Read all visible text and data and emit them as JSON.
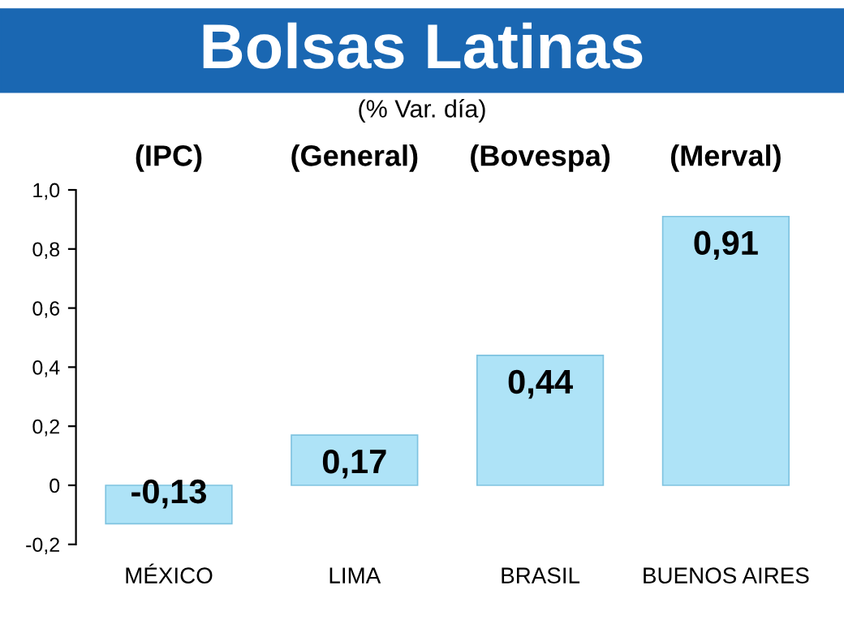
{
  "chart_data": {
    "type": "bar",
    "title": "Bolsas Latinas",
    "subtitle": "(% Var. día)",
    "categories": [
      "MÉXICO",
      "LIMA",
      "BRASIL",
      "BUENOS AIRES"
    ],
    "values": [
      -0.13,
      0.17,
      0.44,
      0.91
    ],
    "color": "#aee3f7",
    "ylim": [
      -0.2,
      1.0
    ],
    "yticks": [
      {
        "value": -0.2,
        "label": "-0,2"
      },
      0,
      {
        "value": 0.2,
        "label": "0,2"
      },
      {
        "value": 0.4,
        "label": "0,4"
      },
      {
        "value": 0.6,
        "label": "0,6"
      },
      {
        "value": 0.8,
        "label": "0,8"
      },
      {
        "value": 1.0,
        "label": "1,0"
      }
    ],
    "value_labels": [
      "-0,13",
      "0,17",
      "0,44",
      "0,91"
    ],
    "annotations": [
      "(IPC)",
      "(General)",
      "(Bovespa)",
      "(Merval)"
    ],
    "grid": false,
    "legend": false
  }
}
